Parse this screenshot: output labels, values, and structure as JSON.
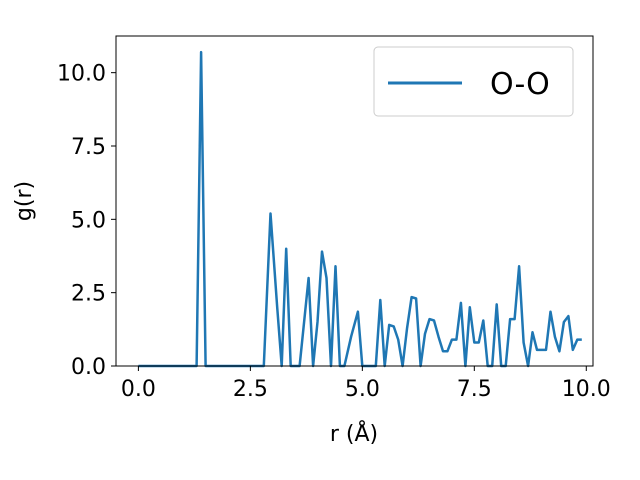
{
  "chart_data": {
    "type": "line",
    "xlabel": "r (Å)",
    "ylabel": "g(r)",
    "xlim": [
      -0.5,
      10.15
    ],
    "ylim": [
      0.0,
      11.25
    ],
    "xticks": [
      0.0,
      2.5,
      5.0,
      7.5,
      10.0
    ],
    "xtick_labels": [
      "0.0",
      "2.5",
      "5.0",
      "7.5",
      "10.0"
    ],
    "yticks": [
      0.0,
      2.5,
      5.0,
      7.5,
      10.0
    ],
    "ytick_labels": [
      "0.0",
      "2.5",
      "5.0",
      "7.5",
      "10.0"
    ],
    "grid": false,
    "legend_position": "top-right",
    "series": [
      {
        "name": "O-O",
        "color": "#1f77b4",
        "x": [
          0.0,
          1.3,
          1.4,
          1.5,
          2.8,
          2.95,
          3.1,
          3.2,
          3.3,
          3.4,
          3.6,
          3.8,
          3.9,
          4.0,
          4.1,
          4.2,
          4.3,
          4.4,
          4.5,
          4.6,
          4.75,
          4.9,
          5.0,
          5.3,
          5.4,
          5.5,
          5.6,
          5.7,
          5.8,
          5.9,
          6.0,
          6.1,
          6.2,
          6.3,
          6.4,
          6.5,
          6.6,
          6.7,
          6.8,
          6.9,
          7.0,
          7.1,
          7.2,
          7.3,
          7.4,
          7.5,
          7.6,
          7.7,
          7.8,
          7.9,
          8.0,
          8.1,
          8.2,
          8.3,
          8.4,
          8.5,
          8.6,
          8.7,
          8.8,
          8.9,
          9.0,
          9.1,
          9.2,
          9.3,
          9.4,
          9.5,
          9.6,
          9.7,
          9.8,
          9.9
        ],
        "y": [
          0.0,
          0.0,
          10.7,
          0.0,
          0.0,
          5.2,
          2.0,
          0.0,
          4.0,
          0.0,
          0.0,
          3.0,
          0.0,
          1.5,
          3.9,
          3.0,
          0.0,
          3.4,
          0.0,
          0.0,
          1.0,
          1.85,
          0.0,
          0.0,
          2.25,
          0.0,
          1.4,
          1.35,
          0.9,
          0.0,
          1.3,
          2.35,
          2.3,
          0.0,
          1.1,
          1.6,
          1.55,
          1.0,
          0.5,
          0.5,
          0.9,
          0.9,
          2.15,
          0.0,
          2.0,
          0.8,
          0.8,
          1.55,
          0.0,
          0.0,
          2.1,
          0.0,
          0.0,
          1.6,
          1.6,
          3.4,
          0.8,
          0.0,
          1.15,
          0.55,
          0.55,
          0.55,
          1.85,
          1.0,
          0.5,
          1.5,
          1.7,
          0.55,
          0.9,
          0.9
        ]
      }
    ]
  }
}
